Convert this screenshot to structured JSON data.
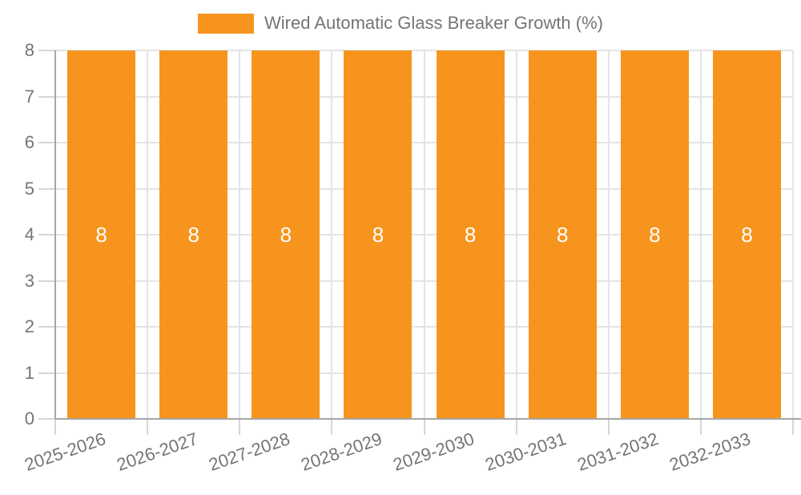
{
  "chart_data": {
    "type": "bar",
    "title": "Wired Automatic Glass Breaker Growth (%)",
    "legend": {
      "label": "Wired Automatic Glass Breaker Growth (%)",
      "position": "top-center"
    },
    "categories": [
      "2025-2026",
      "2026-2027",
      "2027-2028",
      "2028-2029",
      "2029-2030",
      "2030-2031",
      "2031-2032",
      "2032-2033"
    ],
    "series": [
      {
        "name": "Wired Automatic Glass Breaker Growth (%)",
        "values": [
          8,
          8,
          8,
          8,
          8,
          8,
          8,
          8
        ]
      }
    ],
    "bar_value_labels": [
      "8",
      "8",
      "8",
      "8",
      "8",
      "8",
      "8",
      "8"
    ],
    "xlabel": "",
    "ylabel": "",
    "ylim": [
      0,
      8
    ],
    "yticks": [
      0,
      1,
      2,
      3,
      4,
      5,
      6,
      7,
      8
    ],
    "grid": true,
    "colors": {
      "bar": "#f7941e",
      "grid": "#e4e4e4",
      "tick": "#d6d6d6",
      "axis": "#a6a6a6",
      "text": "#757575",
      "value_label": "#ffffff"
    }
  }
}
